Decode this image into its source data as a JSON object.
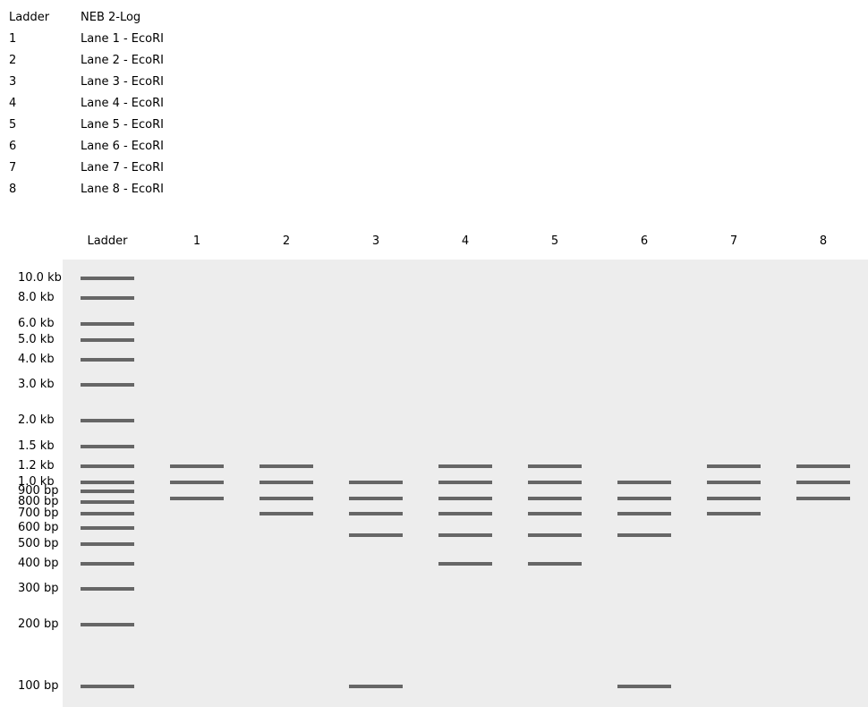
{
  "colors": {
    "page_background": "#ffffff",
    "gel_background": "#ededed",
    "band": "#666666",
    "text": "#000000"
  },
  "legend": {
    "rows": [
      {
        "lane": "Ladder",
        "description": "NEB 2-Log"
      },
      {
        "lane": "1",
        "description": "Lane 1 - EcoRI"
      },
      {
        "lane": "2",
        "description": "Lane 2 - EcoRI"
      },
      {
        "lane": "3",
        "description": "Lane 3 - EcoRI"
      },
      {
        "lane": "4",
        "description": "Lane 4 - EcoRI"
      },
      {
        "lane": "5",
        "description": "Lane 5 - EcoRI"
      },
      {
        "lane": "6",
        "description": "Lane 6 - EcoRI"
      },
      {
        "lane": "7",
        "description": "Lane 7 - EcoRI"
      },
      {
        "lane": "8",
        "description": "Lane 8 - EcoRI"
      }
    ]
  },
  "chart_data": {
    "type": "gel_electrophoresis",
    "y_scale": "log10_bp",
    "y_range_bp": [
      10000,
      100
    ],
    "ladder": {
      "header_label": "Ladder",
      "name": "NEB 2-Log",
      "bands": [
        {
          "bp": 10000,
          "label": "10.0 kb"
        },
        {
          "bp": 8000,
          "label": "8.0 kb"
        },
        {
          "bp": 6000,
          "label": "6.0 kb"
        },
        {
          "bp": 5000,
          "label": "5.0 kb"
        },
        {
          "bp": 4000,
          "label": "4.0 kb"
        },
        {
          "bp": 3000,
          "label": "3.0 kb"
        },
        {
          "bp": 2000,
          "label": "2.0 kb"
        },
        {
          "bp": 1500,
          "label": "1.5 kb"
        },
        {
          "bp": 1200,
          "label": "1.2 kb"
        },
        {
          "bp": 1000,
          "label": "1.0 kb"
        },
        {
          "bp": 900,
          "label": "900 bp"
        },
        {
          "bp": 800,
          "label": "800 bp"
        },
        {
          "bp": 700,
          "label": "700 bp"
        },
        {
          "bp": 600,
          "label": "600 bp"
        },
        {
          "bp": 500,
          "label": "500 bp"
        },
        {
          "bp": 400,
          "label": "400 bp"
        },
        {
          "bp": 300,
          "label": "300 bp"
        },
        {
          "bp": 200,
          "label": "200 bp"
        },
        {
          "bp": 100,
          "label": "100 bp"
        }
      ]
    },
    "lanes": [
      {
        "label": "1",
        "sample": "Lane 1 - EcoRI",
        "bands_bp": [
          1200,
          1000,
          835
        ]
      },
      {
        "label": "2",
        "sample": "Lane 2 - EcoRI",
        "bands_bp": [
          1200,
          1000,
          835,
          700
        ]
      },
      {
        "label": "3",
        "sample": "Lane 3 - EcoRI",
        "bands_bp": [
          1000,
          835,
          700,
          550,
          100
        ]
      },
      {
        "label": "4",
        "sample": "Lane 4 - EcoRI",
        "bands_bp": [
          1200,
          1000,
          835,
          700,
          550,
          400
        ]
      },
      {
        "label": "5",
        "sample": "Lane 5 - EcoRI",
        "bands_bp": [
          1200,
          1000,
          835,
          700,
          550,
          400
        ]
      },
      {
        "label": "6",
        "sample": "Lane 6 - EcoRI",
        "bands_bp": [
          1000,
          835,
          700,
          550,
          100
        ]
      },
      {
        "label": "7",
        "sample": "Lane 7 - EcoRI",
        "bands_bp": [
          1200,
          1000,
          835,
          700
        ]
      },
      {
        "label": "8",
        "sample": "Lane 8 - EcoRI",
        "bands_bp": [
          1200,
          1000,
          835
        ]
      }
    ]
  }
}
